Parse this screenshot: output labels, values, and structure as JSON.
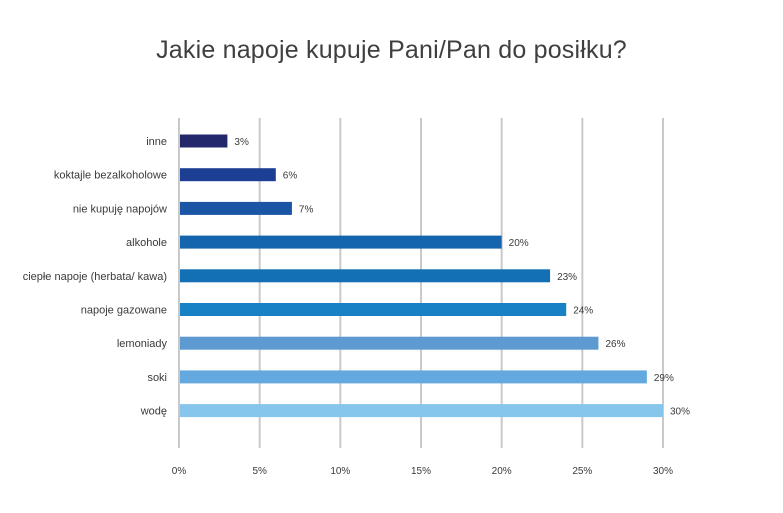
{
  "chart_data": {
    "type": "bar",
    "orientation": "horizontal",
    "title": "Jakie napoje kupuje Pani/Pan do posiłku?",
    "categories": [
      "inne",
      "koktajle bezalkoholowe",
      "nie kupuję napojów",
      "alkohole",
      "ciepłe napoje (herbata/ kawa)",
      "napoje gazowane",
      "lemoniady",
      "soki",
      "wodę"
    ],
    "values": [
      3,
      6,
      7,
      20,
      23,
      24,
      26,
      29,
      30
    ],
    "value_labels": [
      "3%",
      "6%",
      "7%",
      "20%",
      "23%",
      "24%",
      "26%",
      "29%",
      "30%"
    ],
    "colors": [
      "#22286b",
      "#1d3f93",
      "#1a56a5",
      "#1565ae",
      "#1470b4",
      "#1880c4",
      "#5e9ad2",
      "#63a8de",
      "#86c5ec"
    ],
    "xlim": [
      0,
      30
    ],
    "xticks": [
      0,
      5,
      10,
      15,
      20,
      25,
      30
    ],
    "xtick_labels": [
      "0%",
      "5%",
      "10%",
      "15%",
      "20%",
      "25%",
      "30%"
    ],
    "grid": "vertical",
    "legend": "none"
  }
}
